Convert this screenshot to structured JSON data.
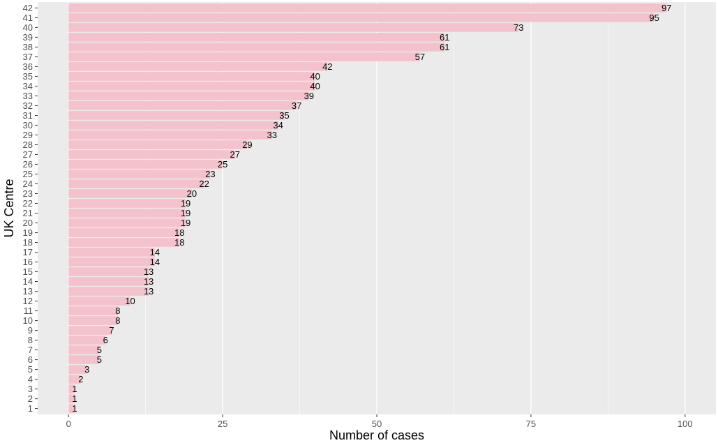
{
  "chart_data": {
    "type": "bar",
    "orientation": "horizontal",
    "xlabel": "Number of cases",
    "ylabel": "UK Centre",
    "xlim": [
      0,
      100
    ],
    "x_ticks": [
      0,
      25,
      50,
      75,
      100
    ],
    "grid": true,
    "bar_color": "#f4c2cc",
    "panel_color": "#ebebeb",
    "grid_color": "#ffffff",
    "categories": [
      "1",
      "2",
      "3",
      "4",
      "5",
      "6",
      "7",
      "8",
      "9",
      "10",
      "11",
      "12",
      "13",
      "14",
      "15",
      "16",
      "17",
      "18",
      "19",
      "20",
      "21",
      "22",
      "23",
      "24",
      "25",
      "26",
      "27",
      "28",
      "29",
      "30",
      "31",
      "32",
      "33",
      "34",
      "35",
      "36",
      "37",
      "38",
      "39",
      "40",
      "41",
      "42"
    ],
    "values": [
      1,
      1,
      1,
      2,
      3,
      5,
      5,
      6,
      7,
      8,
      8,
      10,
      13,
      13,
      13,
      14,
      14,
      18,
      18,
      19,
      19,
      19,
      20,
      22,
      23,
      25,
      27,
      29,
      33,
      34,
      35,
      37,
      39,
      40,
      40,
      42,
      57,
      61,
      61,
      73,
      95,
      97
    ]
  }
}
